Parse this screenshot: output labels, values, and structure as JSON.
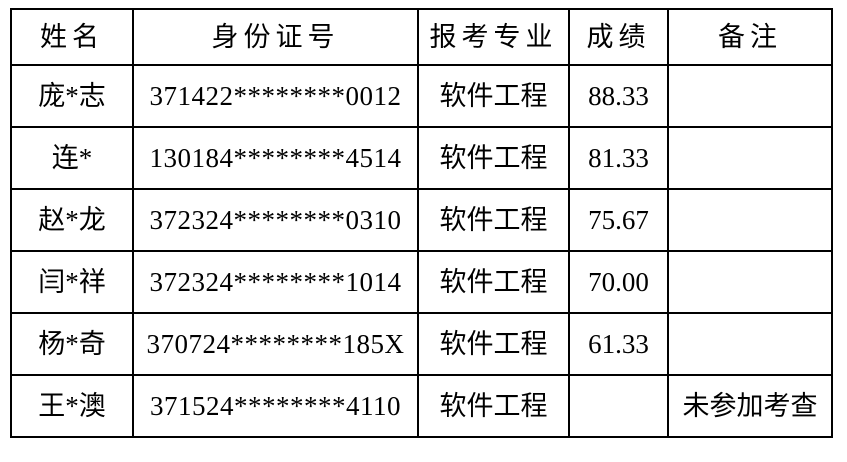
{
  "colors": {
    "background": "#ffffff",
    "border": "#000000",
    "text": "#000000"
  },
  "table": {
    "headers": {
      "name": "姓名",
      "id_number": "身份证号",
      "major": "报考专业",
      "score": "成绩",
      "remark": "备注"
    },
    "rows": [
      {
        "name": "庞*志",
        "id_number": "371422********0012",
        "major": "软件工程",
        "score": "88.33",
        "remark": ""
      },
      {
        "name": "连*",
        "id_number": "130184********4514",
        "major": "软件工程",
        "score": "81.33",
        "remark": ""
      },
      {
        "name": "赵*龙",
        "id_number": "372324********0310",
        "major": "软件工程",
        "score": "75.67",
        "remark": ""
      },
      {
        "name": "闫*祥",
        "id_number": "372324********1014",
        "major": "软件工程",
        "score": "70.00",
        "remark": ""
      },
      {
        "name": "杨*奇",
        "id_number": "370724********185X",
        "major": "软件工程",
        "score": "61.33",
        "remark": ""
      },
      {
        "name": "王*澳",
        "id_number": "371524********4110",
        "major": "软件工程",
        "score": "",
        "remark": "未参加考查"
      }
    ]
  }
}
